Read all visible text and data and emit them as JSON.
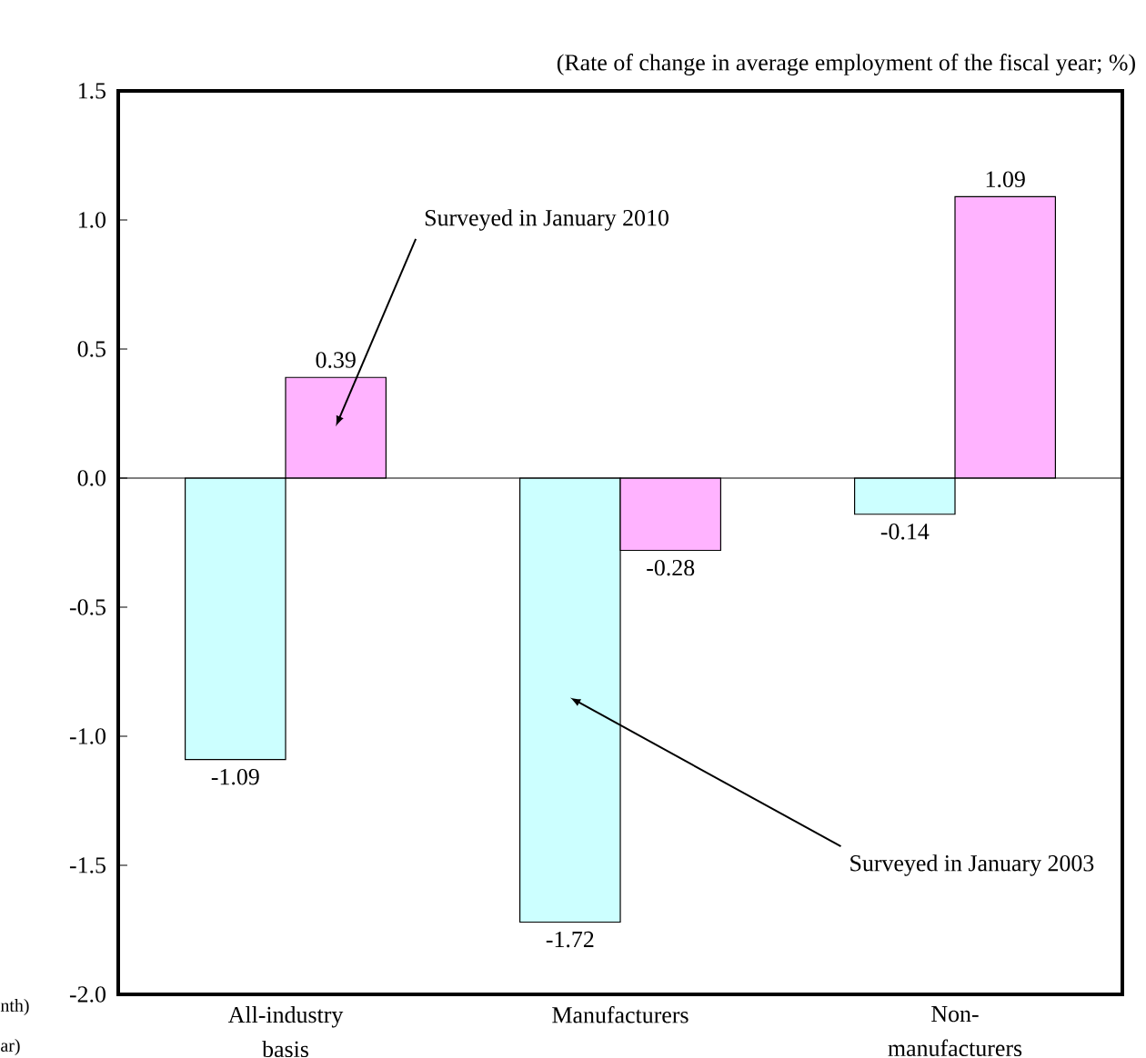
{
  "chart_data": {
    "type": "bar",
    "ylabel": "(Rate of change in average employment of the fiscal year; %)",
    "categories": [
      "All-industry basis",
      "Manufacturers",
      "Non-manufacturers"
    ],
    "series": [
      {
        "name": "Surveyed in January 2003",
        "color": "#ccffff",
        "values": [
          -1.09,
          -1.72,
          -0.14
        ],
        "value_labels": [
          "-1.09",
          "-1.72",
          "-0.14"
        ]
      },
      {
        "name": "Surveyed in January 2010",
        "color": "#ffb3ff",
        "values": [
          0.39,
          -0.28,
          1.09
        ],
        "value_labels": [
          "0.39",
          "-0.28",
          "1.09"
        ]
      }
    ],
    "ylim": [
      -2.0,
      1.5
    ],
    "yticks": [
      {
        "value": -2.0,
        "label": "-2.0"
      },
      {
        "value": -1.5,
        "label": "-1.5"
      },
      {
        "value": -1.0,
        "label": "-1.0"
      },
      {
        "value": -0.5,
        "label": "-0.5"
      },
      {
        "value": 0.0,
        "label": "0.0"
      },
      {
        "value": 0.5,
        "label": "0.5"
      },
      {
        "value": 1.0,
        "label": "1.0"
      },
      {
        "value": 1.5,
        "label": "1.5"
      }
    ],
    "annotations": [
      "nth)",
      "ar)"
    ],
    "legend": false
  }
}
